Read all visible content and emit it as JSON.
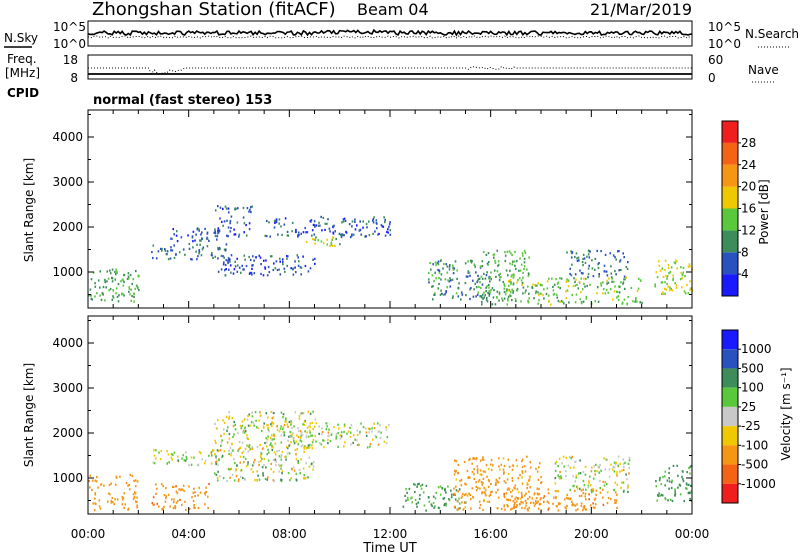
{
  "header": {
    "title": "Zhongshan Station (fitACF)",
    "beam": "Beam 04",
    "date": "21/Mar/2019"
  },
  "noise_panel": {
    "left_label": "N.Sky",
    "left_ticks": [
      "10^5",
      "10^0"
    ],
    "right_label": "N.Search",
    "right_ticks": [
      "10^5",
      "10^0"
    ]
  },
  "freq_panel": {
    "left_label_1": "Freq.",
    "left_label_2": "[MHz]",
    "left_ticks": [
      "18",
      "8"
    ],
    "right_label": "Nave",
    "right_ticks": [
      "60",
      "0"
    ],
    "cpid_label": "CPID",
    "cpid_text": "normal (fast stereo) 153"
  },
  "x_axis": {
    "label": "Time UT",
    "ticks": [
      "00:00",
      "04:00",
      "08:00",
      "12:00",
      "16:00",
      "20:00",
      "00:00"
    ]
  },
  "power_colorbar": {
    "label": "Power [dB]",
    "ticks": [
      "4",
      "8",
      "12",
      "16",
      "20",
      "24",
      "28"
    ],
    "colors": [
      "#1a1aff",
      "#2a52be",
      "#3d8c5a",
      "#5ac83c",
      "#f0c800",
      "#f59614",
      "#f56414",
      "#f01e1e"
    ]
  },
  "velocity_colorbar": {
    "label": "Velocity [m s⁻¹]",
    "ticks": [
      "1000",
      "500",
      "100",
      "25",
      "-25",
      "-100",
      "-500",
      "-1000"
    ],
    "colors": [
      "#1a1aff",
      "#2a52be",
      "#3d8c5a",
      "#5ac83c",
      "#c8c8c8",
      "#f0c800",
      "#f59614",
      "#f56414",
      "#f01e1e"
    ]
  },
  "chart_data": [
    {
      "type": "heatmap",
      "title": "",
      "xlabel": "Time UT",
      "ylabel": "Slant Range [km]",
      "xlim": [
        0,
        24
      ],
      "ylim": [
        200,
        4600
      ],
      "y_ticks": [
        1000,
        2000,
        3000,
        4000
      ],
      "grid": false,
      "value_label": "Power [dB]",
      "scatter_regions": [
        {
          "t0": 0.0,
          "t1": 2.0,
          "r0": 300,
          "r1": 1100,
          "value": 12
        },
        {
          "t0": 2.5,
          "t1": 5.5,
          "r0": 1300,
          "r1": 1650,
          "value": 8
        },
        {
          "t0": 3.2,
          "t1": 5.2,
          "r0": 1700,
          "r1": 2000,
          "value": 6
        },
        {
          "t0": 5.0,
          "t1": 6.5,
          "r0": 1800,
          "r1": 2500,
          "value": 6
        },
        {
          "t0": 5.0,
          "t1": 9.0,
          "r0": 950,
          "r1": 1400,
          "value": 6
        },
        {
          "t0": 7.0,
          "t1": 12.0,
          "r0": 1800,
          "r1": 2250,
          "value": 6
        },
        {
          "t0": 8.5,
          "t1": 10.2,
          "r0": 1600,
          "r1": 1800,
          "value": 14
        },
        {
          "t0": 13.5,
          "t1": 16.0,
          "r0": 400,
          "r1": 1300,
          "value": 10
        },
        {
          "t0": 15.5,
          "t1": 17.5,
          "r0": 300,
          "r1": 1500,
          "value": 12
        },
        {
          "t0": 16.5,
          "t1": 22.0,
          "r0": 300,
          "r1": 900,
          "value": 14
        },
        {
          "t0": 19.0,
          "t1": 21.5,
          "r0": 900,
          "r1": 1500,
          "value": 8
        },
        {
          "t0": 22.5,
          "t1": 24.0,
          "r0": 500,
          "r1": 1300,
          "value": 16
        }
      ]
    },
    {
      "type": "heatmap",
      "title": "",
      "xlabel": "Time UT",
      "ylabel": "Slant Range [km]",
      "xlim": [
        0,
        24
      ],
      "ylim": [
        200,
        4600
      ],
      "y_ticks": [
        1000,
        2000,
        3000,
        4000
      ],
      "grid": false,
      "value_label": "Velocity [m s⁻¹]",
      "scatter_regions": [
        {
          "t0": 0.0,
          "t1": 2.0,
          "r0": 300,
          "r1": 1100,
          "value": -300
        },
        {
          "t0": 2.5,
          "t1": 4.8,
          "r0": 300,
          "r1": 900,
          "value": -400
        },
        {
          "t0": 2.5,
          "t1": 5.5,
          "r0": 1300,
          "r1": 1650,
          "value": 0
        },
        {
          "t0": 5.0,
          "t1": 9.0,
          "r0": 950,
          "r1": 2500,
          "value": 0
        },
        {
          "t0": 7.0,
          "t1": 12.0,
          "r0": 1700,
          "r1": 2250,
          "value": 0
        },
        {
          "t0": 12.5,
          "t1": 15.0,
          "r0": 300,
          "r1": 900,
          "value": 150
        },
        {
          "t0": 14.5,
          "t1": 18.0,
          "r0": 300,
          "r1": 1500,
          "value": -200
        },
        {
          "t0": 16.5,
          "t1": 21.0,
          "r0": 300,
          "r1": 800,
          "value": -400
        },
        {
          "t0": 18.5,
          "t1": 21.5,
          "r0": 700,
          "r1": 1500,
          "value": 0
        },
        {
          "t0": 22.5,
          "t1": 24.0,
          "r0": 500,
          "r1": 1300,
          "value": 150
        }
      ]
    }
  ]
}
